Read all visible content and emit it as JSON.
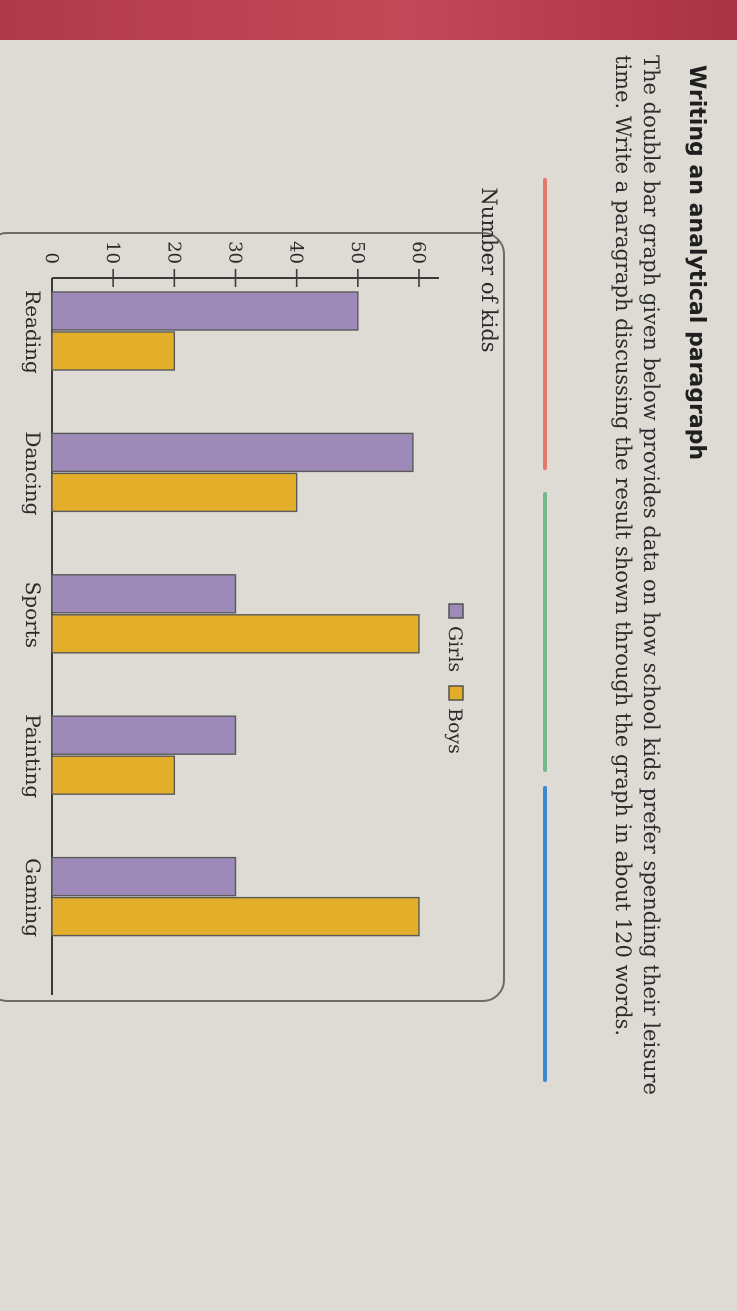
{
  "heading": "Writing an analytical paragraph",
  "instruction": "The double bar graph given below provides data on how school kids prefer spending their leisure time. Write a paragraph discussing the result shown through the graph in about 120 words.",
  "colors": {
    "girls": "#9d8ab8",
    "boys": "#e3ae2a",
    "rule_red": "#e2796a",
    "rule_green": "#74b98a",
    "rule_blue": "#3a8ad0"
  },
  "chart_data": {
    "type": "bar",
    "title": "",
    "ylabel": "Number of kids",
    "xlabel": "",
    "categories": [
      "Reading",
      "Dancing",
      "Sports",
      "Painting",
      "Gaming"
    ],
    "series": [
      {
        "name": "Girls",
        "values": [
          50,
          59,
          30,
          30,
          30
        ]
      },
      {
        "name": "Boys",
        "values": [
          20,
          40,
          60,
          20,
          60
        ]
      }
    ],
    "ylim": [
      0,
      60
    ],
    "yticks": [
      0,
      10,
      20,
      30,
      40,
      50,
      60
    ],
    "legend": "top-center",
    "grid": false
  }
}
